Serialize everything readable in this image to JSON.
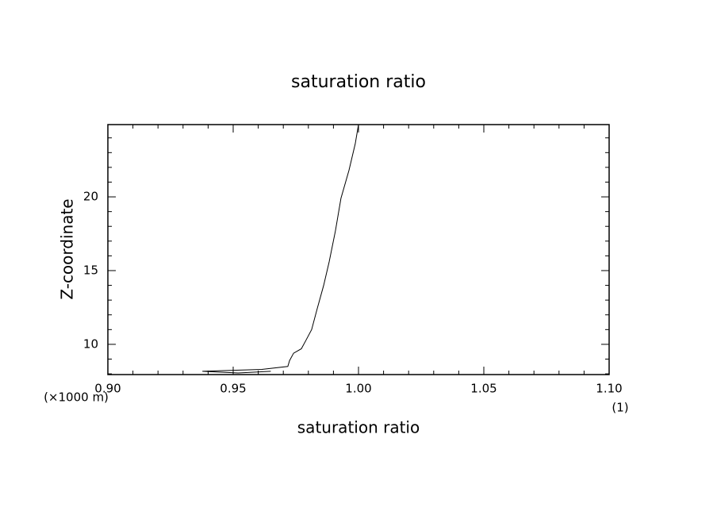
{
  "chart_data": {
    "type": "line",
    "title": "saturation ratio",
    "x_label": "saturation ratio",
    "y_label": "Z-coordinate",
    "y_unit": "(×1000 m)",
    "x_unit": "(1)",
    "x": [
      1.0,
      0.9987,
      0.9962,
      0.993,
      0.9908,
      0.9883,
      0.9861,
      0.9835,
      0.9813,
      0.9788,
      0.9772,
      0.9741,
      0.9725,
      0.9718,
      0.9614,
      0.9377,
      0.952,
      0.965
    ],
    "series": [
      {
        "color": "#000000",
        "values": [
          24.9,
          23.6,
          21.8,
          19.9,
          17.7,
          15.6,
          14.0,
          12.4,
          11.0,
          10.2,
          9.7,
          9.4,
          8.9,
          8.5,
          8.3,
          8.17,
          8.06,
          8.17
        ]
      }
    ],
    "xlim": [
      0.9,
      1.1
    ],
    "ylim": [
      7.95,
      24.9
    ],
    "xticks": [
      {
        "value": 0.9,
        "label": "0.90"
      },
      {
        "value": 0.95,
        "label": "0.95"
      },
      {
        "value": 1.0,
        "label": "1.00"
      },
      {
        "value": 1.05,
        "label": "1.05"
      },
      {
        "value": 1.1,
        "label": "1.10"
      }
    ],
    "yticks": [
      10,
      15,
      20
    ],
    "xminorticks": [
      0.91,
      0.92,
      0.93,
      0.94,
      0.96,
      0.97,
      0.98,
      0.99,
      1.01,
      1.02,
      1.03,
      1.04,
      1.06,
      1.07,
      1.08,
      1.09
    ],
    "yminorticks": [
      8,
      9,
      11,
      12,
      13,
      14,
      16,
      17,
      18,
      19,
      21,
      22,
      23,
      24
    ],
    "grid": false
  }
}
